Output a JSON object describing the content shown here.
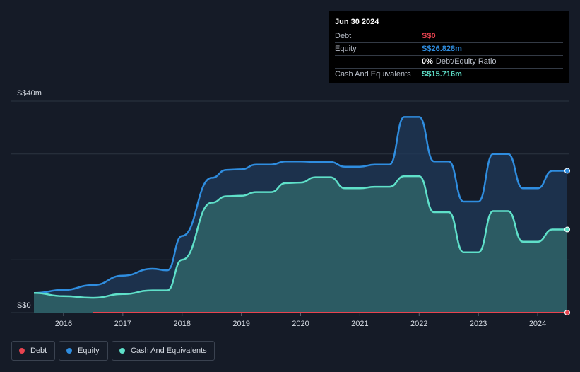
{
  "tooltip": {
    "date": "Jun 30 2024",
    "rows": {
      "debt": {
        "label": "Debt",
        "value": "S$0",
        "color": "#e8434f"
      },
      "equity": {
        "label": "Equity",
        "value": "S$26.828m",
        "color": "#2f8ddf"
      },
      "ratio": {
        "value": "0%",
        "text": "Debt/Equity Ratio"
      },
      "cash": {
        "label": "Cash And Equivalents",
        "value": "S$15.716m",
        "color": "#5fe0c9"
      }
    }
  },
  "legend": {
    "debt": "Debt",
    "equity": "Equity",
    "cash": "Cash And Equivalents"
  },
  "colors": {
    "background": "#151b27",
    "debt": "#e8434f",
    "equity": "#2f8ddf",
    "cash": "#5fe0c9",
    "grid": "#2c3441"
  },
  "chart_data": {
    "type": "area",
    "y_tick_labels": [
      "S$40m",
      "S$0"
    ],
    "ylim": [
      0,
      40
    ],
    "y_unit": "S$m",
    "xlim": [
      2015.5,
      2024.5
    ],
    "x_ticks": [
      "2016",
      "2017",
      "2018",
      "2019",
      "2020",
      "2021",
      "2022",
      "2023",
      "2024"
    ],
    "grid": true,
    "series": [
      {
        "name": "Equity",
        "color": "#2f8ddf",
        "x": [
          2015.5,
          2016.0,
          2016.5,
          2017.0,
          2017.5,
          2017.75,
          2018.0,
          2018.5,
          2018.75,
          2019.0,
          2019.25,
          2019.5,
          2019.75,
          2020.0,
          2020.25,
          2020.5,
          2020.75,
          2021.0,
          2021.25,
          2021.5,
          2021.75,
          2022.0,
          2022.25,
          2022.5,
          2022.75,
          2023.0,
          2023.25,
          2023.5,
          2023.75,
          2024.0,
          2024.25,
          2024.5
        ],
        "y": [
          3.7,
          4.3,
          5.2,
          7.0,
          8.3,
          8.0,
          14.5,
          25.5,
          27.0,
          27.1,
          28.0,
          28.0,
          28.6,
          28.6,
          28.5,
          28.5,
          27.6,
          27.6,
          28.0,
          28.0,
          37.0,
          37.0,
          28.6,
          28.6,
          21.0,
          21.0,
          30.0,
          30.0,
          23.5,
          23.5,
          26.828,
          26.828
        ]
      },
      {
        "name": "Cash And Equivalents",
        "color": "#5fe0c9",
        "x": [
          2015.5,
          2016.0,
          2016.5,
          2017.0,
          2017.5,
          2017.75,
          2018.0,
          2018.5,
          2018.75,
          2019.0,
          2019.25,
          2019.5,
          2019.75,
          2020.0,
          2020.25,
          2020.5,
          2020.75,
          2021.0,
          2021.25,
          2021.5,
          2021.75,
          2022.0,
          2022.25,
          2022.5,
          2022.75,
          2023.0,
          2023.25,
          2023.5,
          2023.75,
          2024.0,
          2024.25,
          2024.5
        ],
        "y": [
          3.7,
          3.1,
          2.8,
          3.5,
          4.2,
          4.2,
          10.0,
          20.8,
          22.0,
          22.1,
          22.8,
          22.8,
          24.5,
          24.6,
          25.6,
          25.6,
          23.5,
          23.5,
          23.8,
          23.8,
          25.8,
          25.8,
          19.0,
          19.0,
          11.4,
          11.4,
          19.2,
          19.2,
          13.4,
          13.4,
          15.716,
          15.716
        ]
      },
      {
        "name": "Debt",
        "color": "#e8434f",
        "x": [
          2016.5,
          2024.5
        ],
        "y": [
          0,
          0
        ]
      }
    ]
  }
}
